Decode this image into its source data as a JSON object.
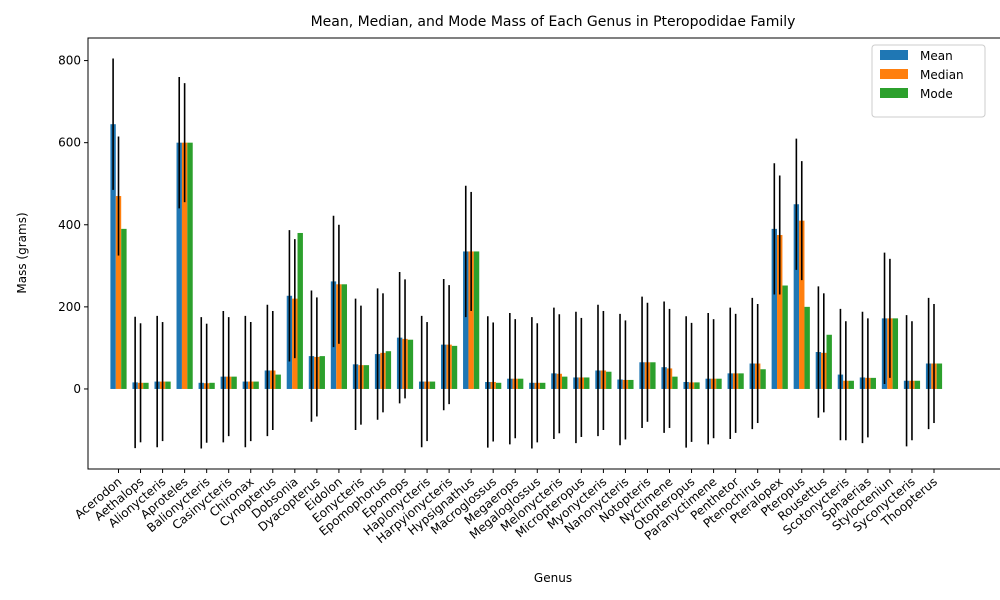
{
  "chart_data": {
    "type": "bar",
    "title": "Mean, Median, and Mode Mass of Each Genus in Pteropodidae Family",
    "xlabel": "Genus",
    "ylabel": "Mass (grams)",
    "ylim": [
      -195,
      855
    ],
    "yticks": [
      0,
      200,
      400,
      600,
      800
    ],
    "legend_position": "top-right",
    "categories": [
      "Acerodon",
      "Aethalops",
      "Alionycteris",
      "Aproteles",
      "Balionycteris",
      "Casinycteris",
      "Chironax",
      "Cynopterus",
      "Dobsonia",
      "Dyacopterus",
      "Eidolon",
      "Eonycteris",
      "Epomophorus",
      "Epomops",
      "Haplonycteris",
      "Harpyionycteris",
      "Hypsignathus",
      "Macroglossus",
      "Megaerops",
      "Megaloglossus",
      "Melonycteris",
      "Micropteropus",
      "Myonycteris",
      "Nanonycteris",
      "Notopteris",
      "Nyctimene",
      "Otopteropus",
      "Paranyctimene",
      "Penthetor",
      "Ptenochirus",
      "Pteralopex",
      "Pteropus",
      "Rousettus",
      "Scotonycteris",
      "Sphaerias",
      "Stylocteniun",
      "Syconycteris",
      "Thoopterus"
    ],
    "series": [
      {
        "name": "Mean",
        "color": "#1f77b4",
        "values": [
          645,
          16,
          18,
          600,
          15,
          30,
          18,
          45,
          227,
          80,
          262,
          60,
          85,
          125,
          18,
          108,
          335,
          17,
          25,
          15,
          38,
          28,
          45,
          23,
          65,
          53,
          17,
          25,
          38,
          62,
          390,
          450,
          90,
          35,
          28,
          172,
          20,
          62
        ],
        "errors": [
          160,
          160,
          160,
          160,
          160,
          160,
          160,
          160,
          160,
          160,
          160,
          160,
          160,
          160,
          160,
          160,
          160,
          160,
          160,
          160,
          160,
          160,
          160,
          160,
          160,
          160,
          160,
          160,
          160,
          160,
          160,
          160,
          160,
          160,
          160,
          160,
          160,
          160
        ]
      },
      {
        "name": "Median",
        "color": "#ff7f0e",
        "values": [
          470,
          15,
          18,
          600,
          14,
          30,
          18,
          45,
          220,
          78,
          255,
          58,
          88,
          122,
          18,
          108,
          335,
          17,
          25,
          15,
          37,
          28,
          45,
          22,
          65,
          50,
          16,
          25,
          38,
          62,
          375,
          410,
          88,
          20,
          27,
          172,
          20,
          62
        ],
        "errors": [
          145,
          145,
          145,
          145,
          145,
          145,
          145,
          145,
          145,
          145,
          145,
          145,
          145,
          145,
          145,
          145,
          145,
          145,
          145,
          145,
          145,
          145,
          145,
          145,
          145,
          145,
          145,
          145,
          145,
          145,
          145,
          145,
          145,
          145,
          145,
          145,
          145,
          145
        ]
      },
      {
        "name": "Mode",
        "color": "#2ca02c",
        "values": [
          390,
          15,
          18,
          600,
          15,
          30,
          18,
          35,
          380,
          80,
          255,
          58,
          92,
          120,
          18,
          105,
          335,
          15,
          25,
          15,
          30,
          28,
          42,
          22,
          65,
          30,
          16,
          25,
          38,
          48,
          252,
          200,
          132,
          20,
          27,
          172,
          20,
          62
        ],
        "errors": []
      }
    ]
  }
}
